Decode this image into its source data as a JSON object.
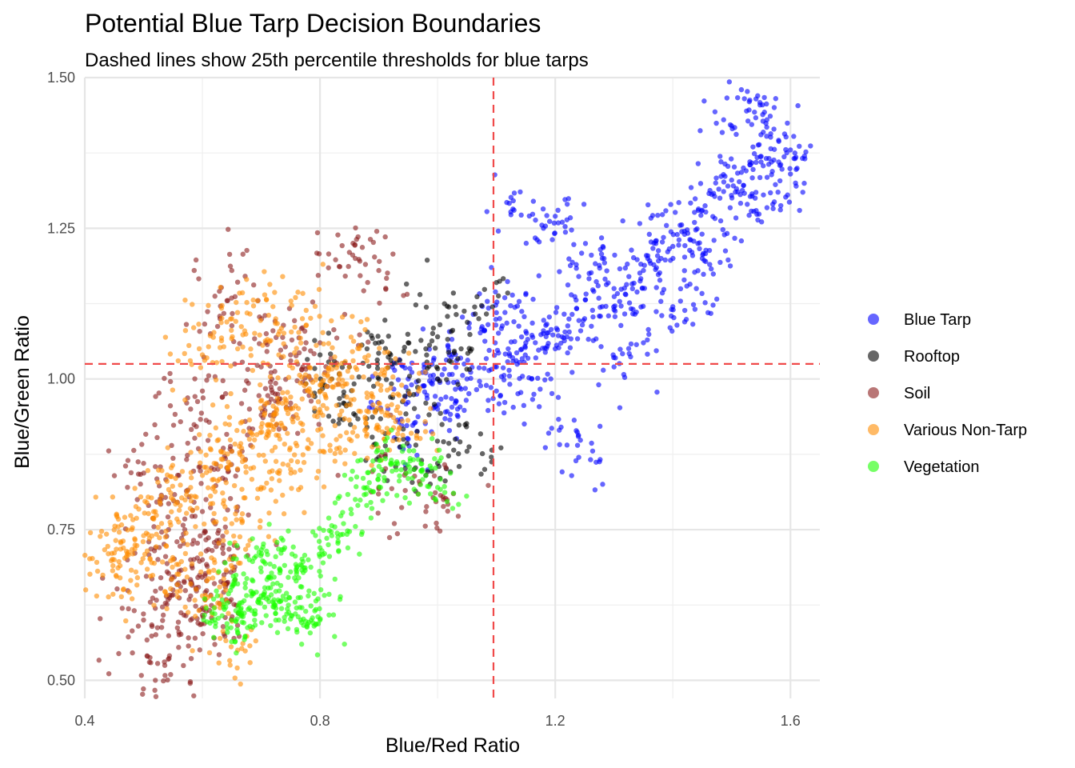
{
  "chart_data": {
    "type": "scatter",
    "title": "Potential Blue Tarp Decision Boundaries",
    "subtitle": "Dashed lines show 25th percentile thresholds for blue tarps",
    "xlabel": "Blue/Red Ratio",
    "ylabel": "Blue/Green Ratio",
    "xlim": [
      0.4,
      1.65
    ],
    "ylim": [
      0.47,
      1.5
    ],
    "x_ticks": [
      0.4,
      0.8,
      1.2,
      1.6
    ],
    "x_tick_labels": [
      "0.4",
      "0.8",
      "1.2",
      "1.6"
    ],
    "y_ticks": [
      0.5,
      0.75,
      1.0,
      1.25,
      1.5
    ],
    "y_tick_labels": [
      "0.50",
      "0.75",
      "1.00",
      "1.25",
      "1.50"
    ],
    "grid": true,
    "legend_position": "right",
    "point_opacity": 0.6,
    "thresholds": {
      "x": 1.095,
      "y": 1.025,
      "color": "#f04a4a",
      "style": "dashed"
    },
    "series": [
      {
        "name": "Blue Tarp",
        "color": "#0000ff",
        "points": [
          [
            1.1,
            1.02
          ],
          [
            1.12,
            1.05
          ],
          [
            1.15,
            1.06
          ],
          [
            1.18,
            1.08
          ],
          [
            1.2,
            1.05
          ],
          [
            1.22,
            1.07
          ],
          [
            1.25,
            1.1
          ],
          [
            1.28,
            1.12
          ],
          [
            1.3,
            1.15
          ],
          [
            1.32,
            1.14
          ],
          [
            1.35,
            1.18
          ],
          [
            1.38,
            1.2
          ],
          [
            1.4,
            1.22
          ],
          [
            1.42,
            1.24
          ],
          [
            1.45,
            1.28
          ],
          [
            1.48,
            1.3
          ],
          [
            1.5,
            1.33
          ],
          [
            1.52,
            1.35
          ],
          [
            1.55,
            1.36
          ],
          [
            1.58,
            1.36
          ],
          [
            1.6,
            1.38
          ],
          [
            1.53,
            1.46
          ],
          [
            1.56,
            1.43
          ],
          [
            1.5,
            1.42
          ],
          [
            1.05,
            1.0
          ],
          [
            1.0,
            1.0
          ],
          [
            0.98,
            1.01
          ],
          [
            0.95,
            1.0
          ],
          [
            1.02,
            1.04
          ],
          [
            1.08,
            1.08
          ],
          [
            1.1,
            1.11
          ],
          [
            1.15,
            1.14
          ],
          [
            1.18,
            1.25
          ],
          [
            1.2,
            1.27
          ],
          [
            1.13,
            1.28
          ],
          [
            1.24,
            1.17
          ],
          [
            1.28,
            1.2
          ],
          [
            1.21,
            0.92
          ],
          [
            1.24,
            0.87
          ],
          [
            1.0,
            0.95
          ],
          [
            0.95,
            0.9
          ],
          [
            0.92,
            0.94
          ],
          [
            1.03,
            0.96
          ],
          [
            1.1,
            0.98
          ],
          [
            1.16,
            1.0
          ],
          [
            1.3,
            1.02
          ],
          [
            1.35,
            1.06
          ],
          [
            1.4,
            1.12
          ],
          [
            1.44,
            1.15
          ],
          [
            1.36,
            1.24
          ],
          [
            1.45,
            1.2
          ],
          [
            1.47,
            1.23
          ],
          [
            1.54,
            1.3
          ],
          [
            1.57,
            1.29
          ],
          [
            1.6,
            1.34
          ]
        ]
      },
      {
        "name": "Rooftop",
        "color": "#000000",
        "points": [
          [
            0.8,
            0.98
          ],
          [
            0.82,
            1.0
          ],
          [
            0.85,
            1.02
          ],
          [
            0.88,
            1.05
          ],
          [
            0.9,
            1.06
          ],
          [
            0.92,
            1.04
          ],
          [
            0.95,
            1.06
          ],
          [
            0.98,
            1.05
          ],
          [
            1.0,
            1.07
          ],
          [
            1.02,
            1.03
          ],
          [
            1.04,
            1.05
          ],
          [
            1.07,
            1.1
          ],
          [
            1.1,
            1.16
          ],
          [
            1.03,
            1.12
          ],
          [
            0.97,
            1.14
          ],
          [
            0.9,
            0.87
          ],
          [
            0.93,
            0.9
          ],
          [
            0.96,
            0.85
          ],
          [
            0.98,
            0.84
          ],
          [
            1.0,
            0.86
          ],
          [
            1.03,
            0.9
          ],
          [
            1.05,
            0.88
          ],
          [
            1.08,
            0.85
          ],
          [
            0.88,
            0.92
          ],
          [
            0.86,
            0.94
          ],
          [
            0.84,
            0.96
          ],
          [
            0.92,
            0.97
          ],
          [
            0.98,
            0.96
          ],
          [
            1.0,
            1.0
          ],
          [
            0.95,
            0.98
          ],
          [
            0.9,
            1.0
          ],
          [
            0.8,
            1.04
          ]
        ]
      },
      {
        "name": "Soil",
        "color": "#8b1a1a",
        "points": [
          [
            0.55,
            0.65
          ],
          [
            0.58,
            0.7
          ],
          [
            0.6,
            0.78
          ],
          [
            0.62,
            0.85
          ],
          [
            0.65,
            0.88
          ],
          [
            0.68,
            0.95
          ],
          [
            0.7,
            1.02
          ],
          [
            0.72,
            1.08
          ],
          [
            0.75,
            1.04
          ],
          [
            0.78,
            1.02
          ],
          [
            0.8,
            1.06
          ],
          [
            0.65,
            1.18
          ],
          [
            0.63,
            1.1
          ],
          [
            0.85,
            1.21
          ],
          [
            0.86,
            1.2
          ],
          [
            0.9,
            1.18
          ],
          [
            0.52,
            0.72
          ],
          [
            0.5,
            0.6
          ],
          [
            0.51,
            0.53
          ],
          [
            0.52,
            0.5
          ],
          [
            0.56,
            0.58
          ],
          [
            0.58,
            0.6
          ],
          [
            0.6,
            0.62
          ],
          [
            0.62,
            0.57
          ],
          [
            0.5,
            0.86
          ],
          [
            0.53,
            0.8
          ],
          [
            0.56,
            0.84
          ],
          [
            0.58,
            0.95
          ],
          [
            0.6,
            0.98
          ],
          [
            0.7,
            0.94
          ],
          [
            0.75,
            0.96
          ],
          [
            0.9,
            0.82
          ],
          [
            0.98,
            0.78
          ],
          [
            1.01,
            0.8
          ],
          [
            0.57,
            0.75
          ],
          [
            0.6,
            0.7
          ],
          [
            0.64,
            0.66
          ],
          [
            0.66,
            0.72
          ],
          [
            0.54,
            0.68
          ],
          [
            0.58,
            0.64
          ]
        ]
      },
      {
        "name": "Various Non-Tarp",
        "color": "#ff8c00",
        "points": [
          [
            0.44,
            0.71
          ],
          [
            0.45,
            0.7
          ],
          [
            0.46,
            0.67
          ],
          [
            0.48,
            0.75
          ],
          [
            0.5,
            0.74
          ],
          [
            0.52,
            0.78
          ],
          [
            0.55,
            0.8
          ],
          [
            0.58,
            0.82
          ],
          [
            0.6,
            0.84
          ],
          [
            0.62,
            0.86
          ],
          [
            0.65,
            0.88
          ],
          [
            0.68,
            0.9
          ],
          [
            0.7,
            0.92
          ],
          [
            0.72,
            0.94
          ],
          [
            0.75,
            0.95
          ],
          [
            0.78,
            0.98
          ],
          [
            0.8,
            0.99
          ],
          [
            0.82,
            1.0
          ],
          [
            0.85,
            1.02
          ],
          [
            0.88,
            1.03
          ],
          [
            0.9,
            0.96
          ],
          [
            0.92,
            0.94
          ],
          [
            0.94,
            0.93
          ],
          [
            0.66,
            0.55
          ],
          [
            0.55,
            0.7
          ],
          [
            0.58,
            0.66
          ],
          [
            0.6,
            0.64
          ],
          [
            0.62,
            0.7
          ],
          [
            0.65,
            0.76
          ],
          [
            0.7,
            0.82
          ],
          [
            0.75,
            0.85
          ],
          [
            0.8,
            0.88
          ],
          [
            0.85,
            0.9
          ],
          [
            0.9,
            0.92
          ],
          [
            0.77,
            1.1
          ],
          [
            0.72,
            1.12
          ],
          [
            0.65,
            1.1
          ],
          [
            0.6,
            1.04
          ],
          [
            0.66,
            1.05
          ],
          [
            0.73,
            1.04
          ]
        ]
      },
      {
        "name": "Vegetation",
        "color": "#1aff00",
        "points": [
          [
            0.62,
            0.62
          ],
          [
            0.65,
            0.6
          ],
          [
            0.68,
            0.62
          ],
          [
            0.7,
            0.64
          ],
          [
            0.72,
            0.66
          ],
          [
            0.75,
            0.68
          ],
          [
            0.78,
            0.7
          ],
          [
            0.8,
            0.72
          ],
          [
            0.82,
            0.74
          ],
          [
            0.84,
            0.76
          ],
          [
            0.86,
            0.8
          ],
          [
            0.88,
            0.82
          ],
          [
            0.9,
            0.84
          ],
          [
            0.92,
            0.86
          ],
          [
            0.94,
            0.88
          ],
          [
            0.96,
            0.85
          ],
          [
            0.98,
            0.84
          ],
          [
            1.0,
            0.82
          ],
          [
            0.66,
            0.66
          ],
          [
            0.68,
            0.7
          ],
          [
            0.7,
            0.68
          ],
          [
            0.74,
            0.72
          ],
          [
            0.76,
            0.62
          ],
          [
            0.8,
            0.6
          ],
          [
            0.79,
            0.59
          ],
          [
            0.78,
            0.64
          ],
          [
            0.66,
            0.58
          ],
          [
            0.69,
            0.61
          ],
          [
            0.72,
            0.63
          ],
          [
            0.73,
            0.6
          ]
        ]
      }
    ]
  }
}
